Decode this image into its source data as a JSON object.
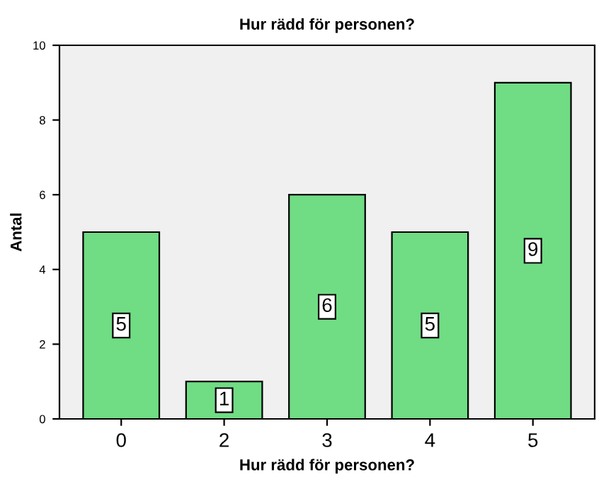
{
  "chart_data": {
    "type": "bar",
    "title": "Hur rädd för personen?",
    "xlabel": "Hur rädd för personen?",
    "ylabel": "Antal",
    "categories": [
      "0",
      "2",
      "3",
      "4",
      "5"
    ],
    "values": [
      5,
      1,
      6,
      5,
      9
    ],
    "color": "#70dc84",
    "ylim": [
      0,
      10
    ],
    "yticks": [
      0,
      2,
      4,
      6,
      8,
      10
    ],
    "grid": false,
    "data_labels": true
  }
}
